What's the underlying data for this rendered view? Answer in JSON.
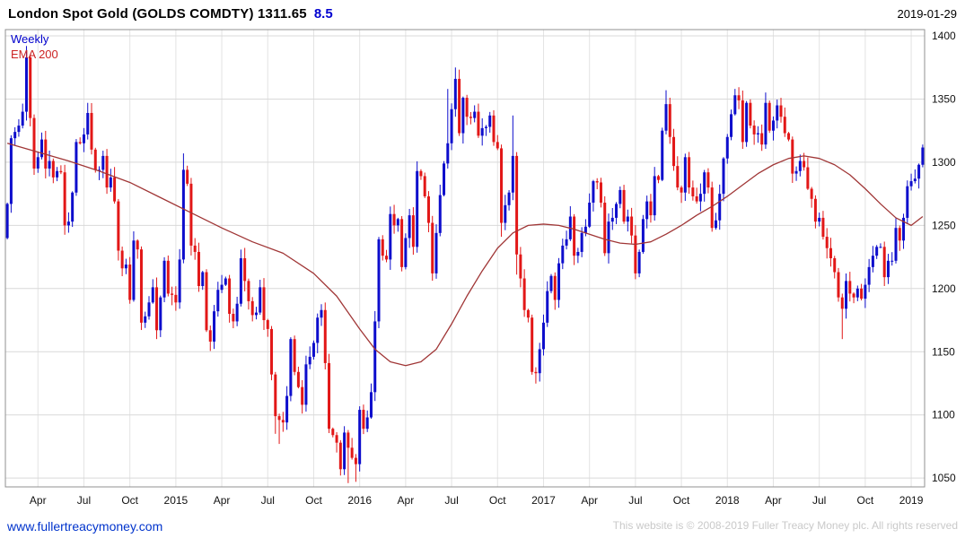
{
  "header": {
    "title_left": "London Spot Gold (GOLDS COMDTY) 1311.65",
    "change": "8.5",
    "date": "2019-01-29"
  },
  "legend": {
    "frequency": "Weekly",
    "overlay": "EMA 200"
  },
  "footer": {
    "link": "www.fullertreacymoney.com",
    "copyright": "This website is © 2008-2019 Fuller Treacy Money plc. All rights reserved"
  },
  "colors": {
    "up": "#0d0dcc",
    "down": "#e21717",
    "ema": "#a03636",
    "grid_h": "#d9d9d9",
    "grid_v": "#e3e3e3",
    "border": "#909090",
    "axis_text": "#111111"
  },
  "chart_data": {
    "type": "candlestick",
    "title": "London Spot Gold (GOLDS COMDTY)",
    "frequency": "weekly",
    "overlay": "EMA 200",
    "last_price": 1311.65,
    "change": 8.5,
    "as_of": "2019-01-29",
    "ylim": [
      1043,
      1405
    ],
    "y_ticks": [
      1050,
      1100,
      1150,
      1200,
      1250,
      1300,
      1350,
      1400
    ],
    "x_ticks": [
      {
        "week": 8,
        "label": "Apr"
      },
      {
        "week": 20,
        "label": "Jul"
      },
      {
        "week": 32,
        "label": "Oct"
      },
      {
        "week": 44,
        "label": "2015"
      },
      {
        "week": 56,
        "label": "Apr"
      },
      {
        "week": 68,
        "label": "Jul"
      },
      {
        "week": 80,
        "label": "Oct"
      },
      {
        "week": 92,
        "label": "2016"
      },
      {
        "week": 104,
        "label": "Apr"
      },
      {
        "week": 116,
        "label": "Jul"
      },
      {
        "week": 128,
        "label": "Oct"
      },
      {
        "week": 140,
        "label": "2017"
      },
      {
        "week": 152,
        "label": "Apr"
      },
      {
        "week": 164,
        "label": "Jul"
      },
      {
        "week": 176,
        "label": "Oct"
      },
      {
        "week": 188,
        "label": "2018"
      },
      {
        "week": 200,
        "label": "Apr"
      },
      {
        "week": 212,
        "label": "Jul"
      },
      {
        "week": 224,
        "label": "Oct"
      },
      {
        "week": 236,
        "label": "2019"
      }
    ],
    "first_open": 1240,
    "closes": [
      1267,
      1319,
      1324,
      1329,
      1340,
      1383,
      1335,
      1295,
      1304,
      1318,
      1295,
      1301,
      1288,
      1293,
      1292,
      1250,
      1253,
      1276,
      1316,
      1315,
      1322,
      1339,
      1310,
      1294,
      1294,
      1305,
      1280,
      1288,
      1269,
      1230,
      1216,
      1219,
      1191,
      1238,
      1231,
      1173,
      1178,
      1189,
      1201,
      1167,
      1193,
      1222,
      1196,
      1195,
      1189,
      1223,
      1294,
      1283,
      1234,
      1229,
      1202,
      1213,
      1167,
      1158,
      1182,
      1199,
      1203,
      1208,
      1180,
      1174,
      1188,
      1224,
      1206,
      1190,
      1179,
      1181,
      1201,
      1175,
      1168,
      1132,
      1099,
      1096,
      1094,
      1115,
      1160,
      1134,
      1122,
      1108,
      1140,
      1146,
      1157,
      1177,
      1183,
      1141,
      1089,
      1084,
      1078,
      1057,
      1086,
      1074,
      1066,
      1061,
      1104,
      1089,
      1098,
      1118,
      1174,
      1239,
      1226,
      1223,
      1259,
      1250,
      1255,
      1217,
      1240,
      1258,
      1233,
      1293,
      1289,
      1273,
      1252,
      1212,
      1244,
      1274,
      1299,
      1315,
      1342,
      1366,
      1323,
      1351,
      1336,
      1335,
      1340,
      1321,
      1327,
      1328,
      1337,
      1316,
      1311,
      1252,
      1266,
      1276,
      1305,
      1227,
      1208,
      1183,
      1177,
      1134,
      1133,
      1152,
      1173,
      1198,
      1210,
      1191,
      1220,
      1234,
      1239,
      1257,
      1226,
      1229,
      1244,
      1249,
      1268,
      1285,
      1284,
      1268,
      1228,
      1253,
      1256,
      1267,
      1278,
      1253,
      1257,
      1242,
      1212,
      1229,
      1255,
      1269,
      1258,
      1289,
      1286,
      1325,
      1346,
      1320,
      1297,
      1280,
      1276,
      1304,
      1280,
      1273,
      1269,
      1275,
      1292,
      1280,
      1248,
      1254,
      1275,
      1303,
      1320,
      1338,
      1353,
      1349,
      1316,
      1347,
      1329,
      1322,
      1323,
      1314,
      1347,
      1325,
      1333,
      1345,
      1336,
      1323,
      1318,
      1291,
      1293,
      1301,
      1296,
      1279,
      1271,
      1253,
      1256,
      1241,
      1232,
      1224,
      1213,
      1193,
      1184,
      1206,
      1196,
      1193,
      1200,
      1192,
      1203,
      1217,
      1226,
      1233,
      1233,
      1209,
      1222,
      1222,
      1248,
      1238,
      1256,
      1281,
      1285,
      1287,
      1298,
      1311.65
    ],
    "wick_overrides": {
      "5": [
        1392,
        1333
      ],
      "21": [
        1347,
        1318
      ],
      "46": [
        1307,
        1220
      ],
      "70": [
        1134,
        1085
      ],
      "71": [
        1101,
        1077
      ],
      "87": [
        1080,
        1052
      ],
      "89": [
        1088,
        1046
      ],
      "91": [
        1069,
        1047
      ],
      "115": [
        1358,
        1295
      ],
      "117": [
        1375,
        1336
      ],
      "129": [
        1314,
        1241
      ],
      "132": [
        1337,
        1270
      ],
      "133": [
        1308,
        1211
      ],
      "172": [
        1357,
        1322
      ],
      "218": [
        1196,
        1160
      ],
      "239": [
        1314,
        1296
      ]
    },
    "ema_points": [
      [
        0,
        1315
      ],
      [
        8,
        1308
      ],
      [
        16,
        1301
      ],
      [
        24,
        1293
      ],
      [
        32,
        1284
      ],
      [
        40,
        1272
      ],
      [
        48,
        1260
      ],
      [
        56,
        1248
      ],
      [
        64,
        1237
      ],
      [
        72,
        1228
      ],
      [
        80,
        1212
      ],
      [
        86,
        1194
      ],
      [
        92,
        1168
      ],
      [
        96,
        1152
      ],
      [
        100,
        1142
      ],
      [
        104,
        1139
      ],
      [
        108,
        1142
      ],
      [
        112,
        1152
      ],
      [
        116,
        1172
      ],
      [
        120,
        1194
      ],
      [
        124,
        1214
      ],
      [
        128,
        1232
      ],
      [
        132,
        1244
      ],
      [
        136,
        1250
      ],
      [
        140,
        1251
      ],
      [
        144,
        1250
      ],
      [
        148,
        1247
      ],
      [
        152,
        1243
      ],
      [
        156,
        1239
      ],
      [
        160,
        1236
      ],
      [
        164,
        1235
      ],
      [
        168,
        1237
      ],
      [
        172,
        1243
      ],
      [
        176,
        1250
      ],
      [
        180,
        1258
      ],
      [
        184,
        1265
      ],
      [
        188,
        1273
      ],
      [
        192,
        1282
      ],
      [
        196,
        1291
      ],
      [
        200,
        1298
      ],
      [
        204,
        1303
      ],
      [
        208,
        1305
      ],
      [
        212,
        1303
      ],
      [
        216,
        1298
      ],
      [
        220,
        1290
      ],
      [
        224,
        1279
      ],
      [
        228,
        1267
      ],
      [
        232,
        1256
      ],
      [
        236,
        1250
      ],
      [
        239,
        1257
      ]
    ]
  }
}
